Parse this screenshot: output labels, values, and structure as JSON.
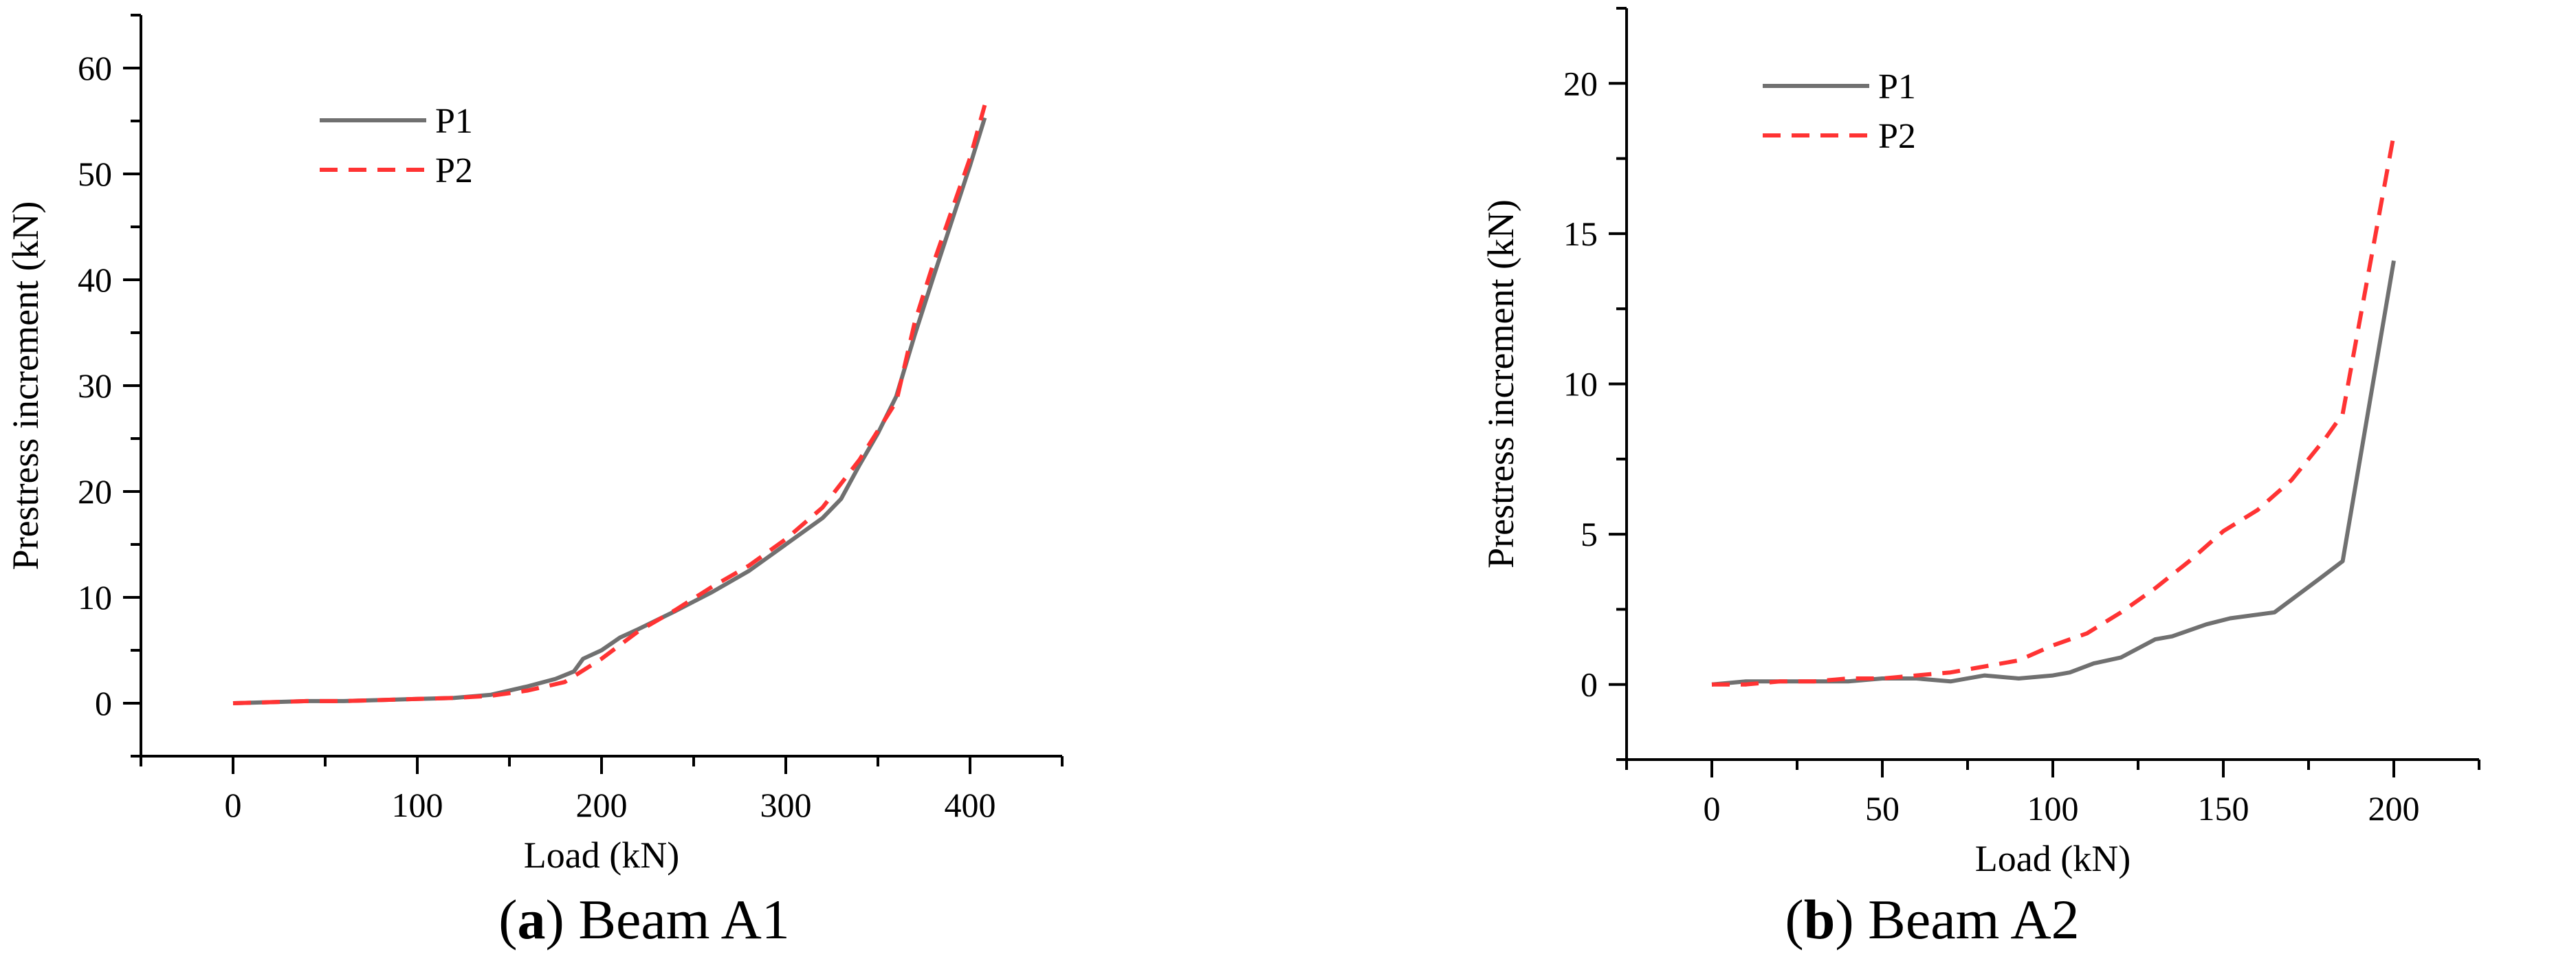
{
  "chart_data": [
    {
      "type": "line",
      "caption_letter": "a",
      "caption_text": ") Beam A1",
      "xlabel": "Load (kN)",
      "ylabel": "Prestress increment (kN)",
      "xlim": [
        -50,
        450
      ],
      "ylim": [
        -5,
        65
      ],
      "xticks": [
        0,
        100,
        200,
        300,
        400
      ],
      "yticks": [
        0,
        10,
        20,
        30,
        40,
        50,
        60
      ],
      "legend_position": "top-left",
      "series": [
        {
          "name": "P1",
          "color": "#707070",
          "dash": "solid",
          "x": [
            0,
            20,
            40,
            60,
            80,
            100,
            120,
            140,
            160,
            175,
            185,
            190,
            200,
            210,
            220,
            240,
            260,
            280,
            300,
            320,
            330,
            340,
            350,
            360,
            370,
            380,
            390,
            400,
            408
          ],
          "y": [
            0,
            0.1,
            0.2,
            0.2,
            0.3,
            0.4,
            0.5,
            0.8,
            1.6,
            2.3,
            3.0,
            4.2,
            5.0,
            6.2,
            7.0,
            8.7,
            10.5,
            12.5,
            15.0,
            17.5,
            19.3,
            22.5,
            25.5,
            29.0,
            34.8,
            40.2,
            45.5,
            50.8,
            55.3
          ]
        },
        {
          "name": "P2",
          "color": "#ff3333",
          "dash": "dashed",
          "x": [
            0,
            20,
            40,
            60,
            80,
            100,
            120,
            140,
            160,
            180,
            200,
            220,
            240,
            260,
            280,
            300,
            320,
            340,
            360,
            370,
            380,
            390,
            400,
            408
          ],
          "y": [
            0,
            0.1,
            0.2,
            0.2,
            0.3,
            0.4,
            0.5,
            0.7,
            1.2,
            2.0,
            4.2,
            6.8,
            8.8,
            11.0,
            13.0,
            15.5,
            18.5,
            23.0,
            28.5,
            36.0,
            41.5,
            46.5,
            51.5,
            56.5
          ]
        }
      ]
    },
    {
      "type": "line",
      "caption_letter": "b",
      "caption_text": ") Beam A2",
      "xlabel": "Load (kN)",
      "ylabel": "Prestress increment (kN)",
      "xlim": [
        -25,
        225
      ],
      "ylim": [
        -2.5,
        22.5
      ],
      "xticks": [
        0,
        50,
        100,
        150,
        200
      ],
      "yticks": [
        0,
        5,
        10,
        15,
        20
      ],
      "legend_position": "top-left",
      "series": [
        {
          "name": "P1",
          "color": "#707070",
          "dash": "solid",
          "x": [
            0,
            10,
            20,
            30,
            40,
            50,
            60,
            70,
            80,
            90,
            100,
            105,
            112,
            120,
            130,
            135,
            145,
            152,
            165,
            178,
            185,
            200
          ],
          "y": [
            0,
            0.1,
            0.1,
            0.1,
            0.1,
            0.2,
            0.2,
            0.1,
            0.3,
            0.2,
            0.3,
            0.4,
            0.7,
            0.9,
            1.5,
            1.6,
            2.0,
            2.2,
            2.4,
            3.5,
            4.1,
            14.1
          ]
        },
        {
          "name": "P2",
          "color": "#ff3333",
          "dash": "dashed",
          "x": [
            0,
            10,
            20,
            30,
            40,
            50,
            60,
            70,
            80,
            90,
            100,
            110,
            120,
            130,
            140,
            150,
            160,
            170,
            180,
            185,
            200
          ],
          "y": [
            0,
            0,
            0.1,
            0.1,
            0.2,
            0.2,
            0.3,
            0.4,
            0.6,
            0.8,
            1.3,
            1.7,
            2.4,
            3.2,
            4.1,
            5.1,
            5.8,
            6.8,
            8.2,
            9.0,
            18.3
          ]
        }
      ]
    }
  ]
}
